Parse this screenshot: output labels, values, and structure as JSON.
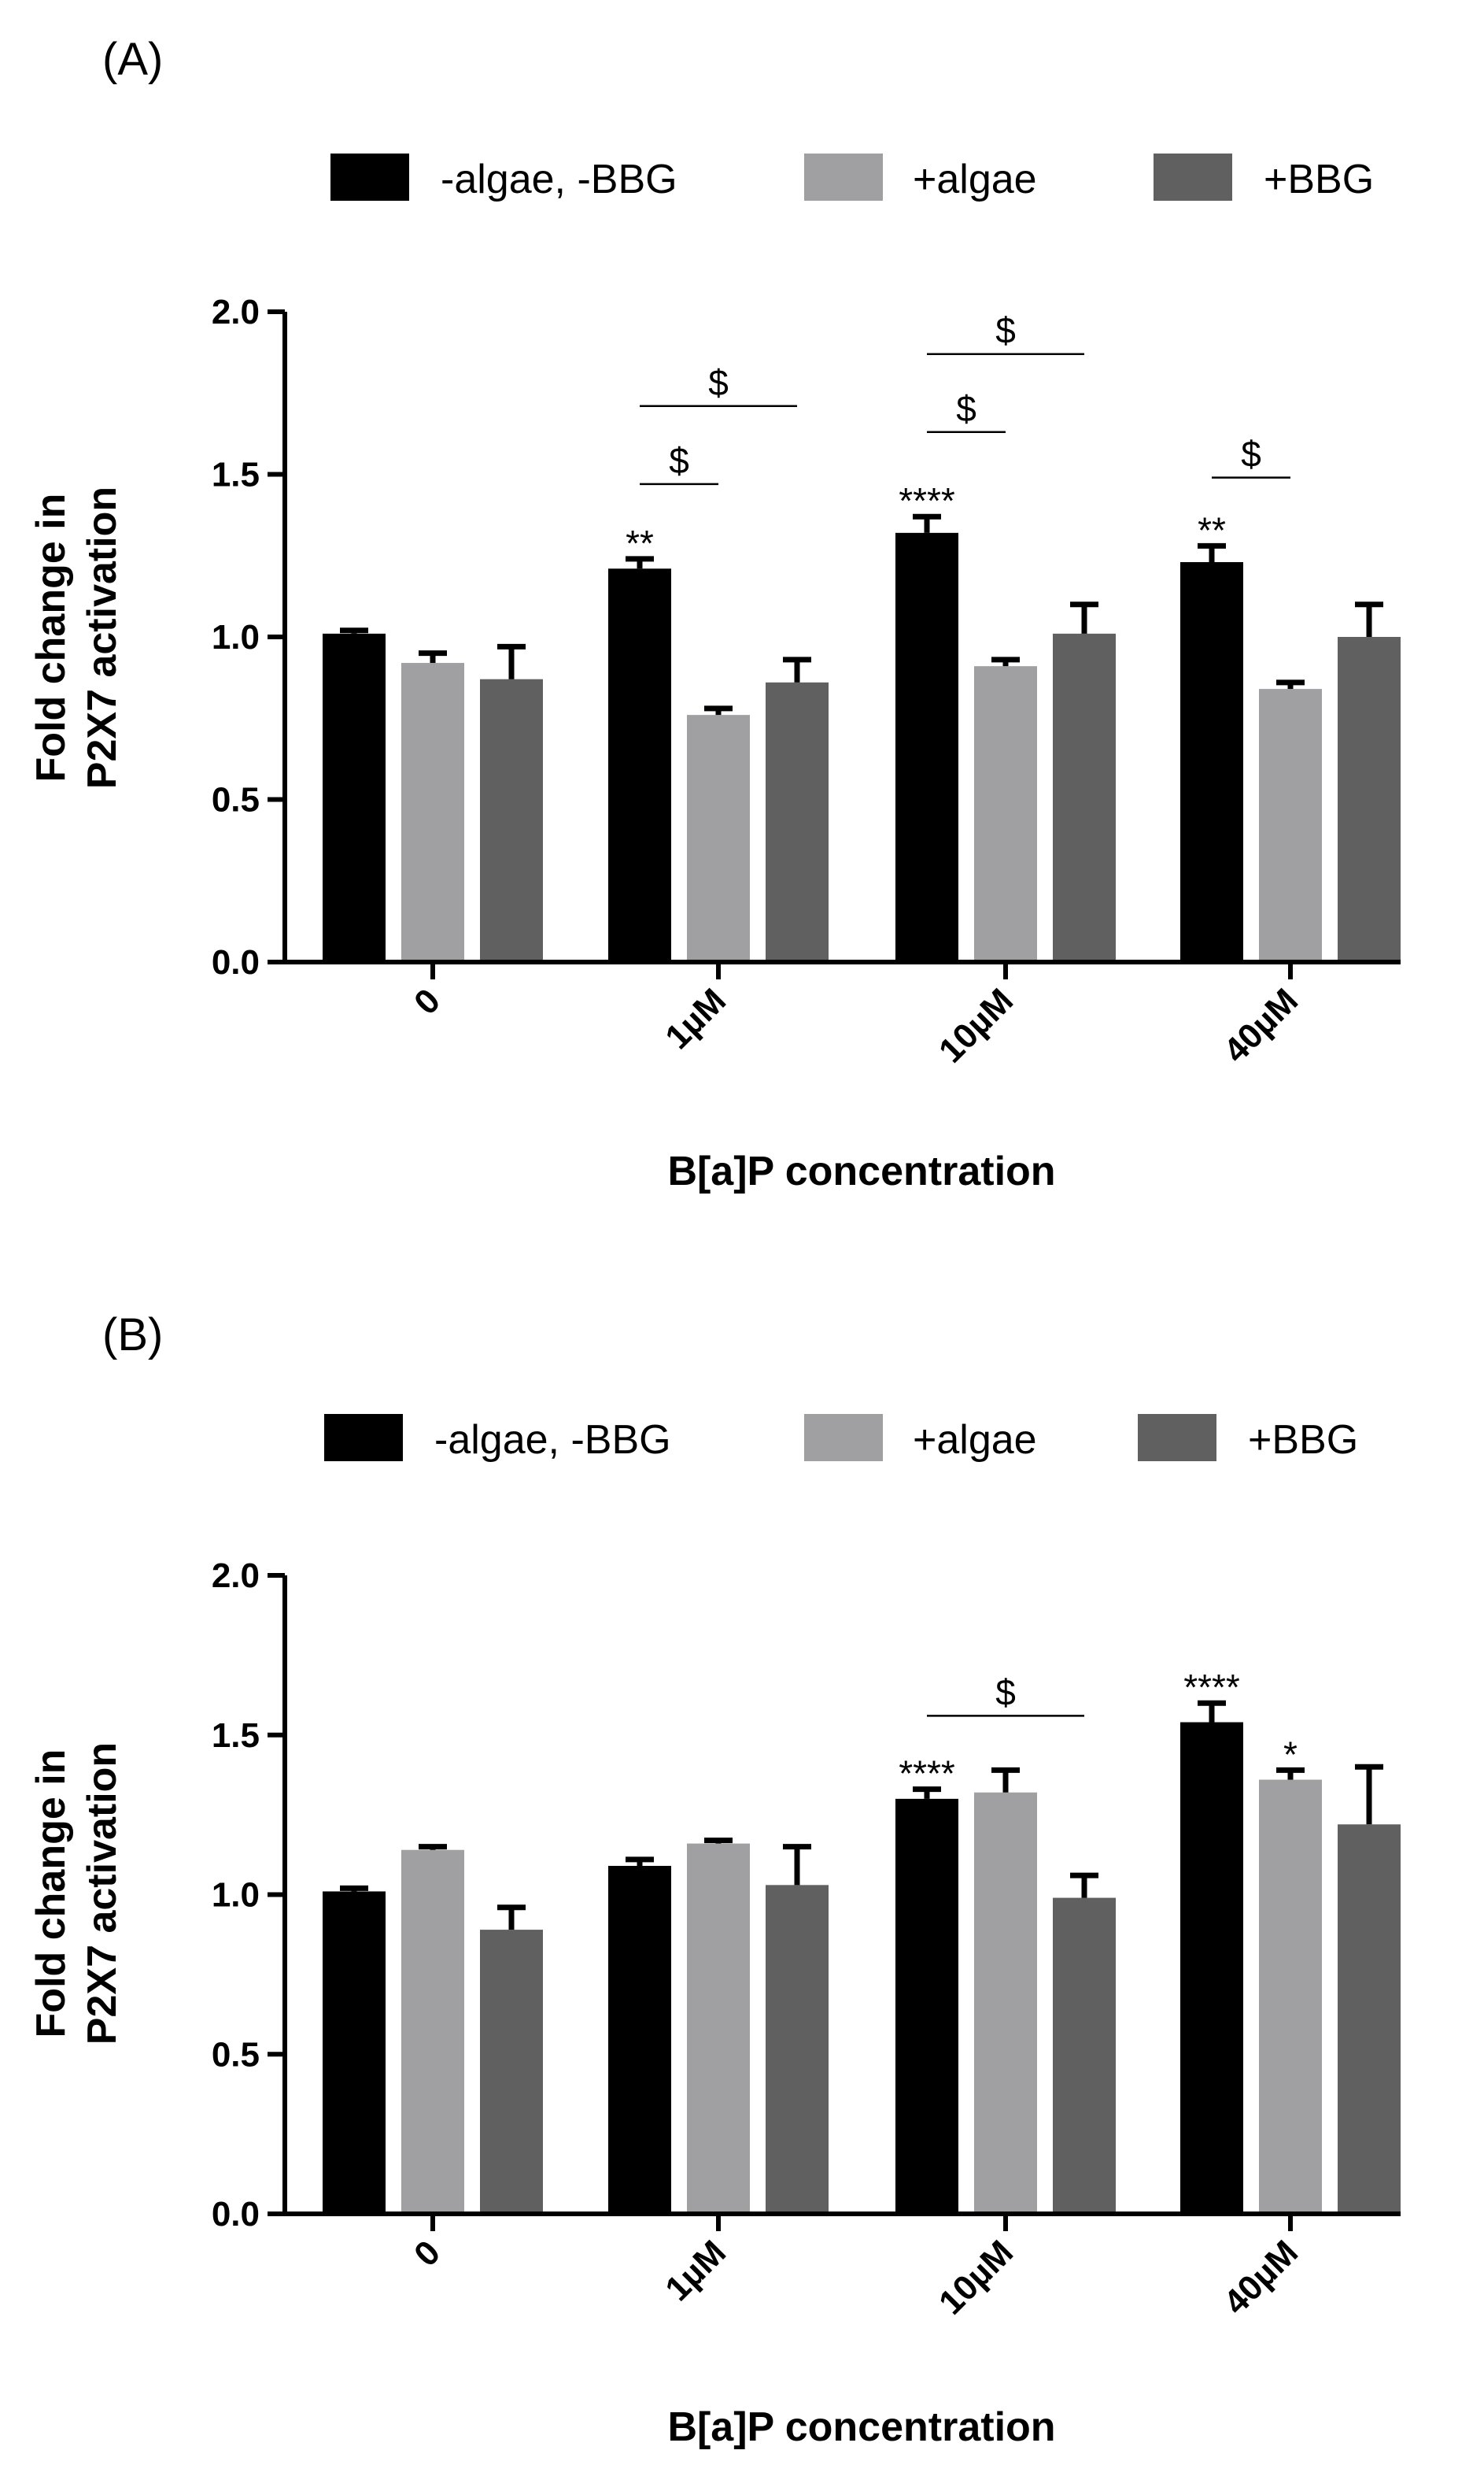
{
  "chart_data": [
    {
      "type": "bar",
      "panel_label": "(A)",
      "categories": [
        "0",
        "1µM",
        "10µM",
        "40µM"
      ],
      "series": [
        {
          "name": "-algae, -BBG",
          "color": "#000000",
          "values": [
            1.01,
            1.21,
            1.32,
            1.23
          ],
          "errors": [
            0.01,
            0.03,
            0.05,
            0.05
          ]
        },
        {
          "name": "+algae",
          "color": "#a0a0a2",
          "values": [
            0.92,
            0.76,
            0.91,
            0.84
          ],
          "errors": [
            0.03,
            0.02,
            0.02,
            0.02
          ]
        },
        {
          "name": "+BBG",
          "color": "#606060",
          "values": [
            0.87,
            0.86,
            1.01,
            1.0
          ],
          "errors": [
            0.1,
            0.07,
            0.09,
            0.1
          ]
        }
      ],
      "xlabel": "B[a]P concentration",
      "ylabel_line1": "Fold change in",
      "ylabel_line2": "P2X7 activation",
      "ylim": [
        0,
        2.0
      ],
      "yticks": [
        "0.0",
        "0.5",
        "1.0",
        "1.5",
        "2.0"
      ],
      "annotations": [
        {
          "text": "**",
          "category": 1,
          "series": 0
        },
        {
          "text": "****",
          "category": 2,
          "series": 0
        },
        {
          "text": "**",
          "category": 3,
          "series": 0
        }
      ],
      "brackets": [
        {
          "text": "$",
          "category": 1,
          "from_series": 0,
          "to_series": 1,
          "level": 1.47
        },
        {
          "text": "$",
          "category": 1,
          "from_series": 0,
          "to_series": 2,
          "level": 1.71
        },
        {
          "text": "$",
          "category": 2,
          "from_series": 0,
          "to_series": 1,
          "level": 1.63
        },
        {
          "text": "$",
          "category": 2,
          "from_series": 0,
          "to_series": 2,
          "level": 1.87
        },
        {
          "text": "$",
          "category": 3,
          "from_series": 0,
          "to_series": 1,
          "level": 1.49
        }
      ],
      "legend_position": "top"
    },
    {
      "type": "bar",
      "panel_label": "(B)",
      "categories": [
        "0",
        "1µM",
        "10µM",
        "40µM"
      ],
      "series": [
        {
          "name": "-algae, -BBG",
          "color": "#000000",
          "values": [
            1.01,
            1.09,
            1.3,
            1.54
          ],
          "errors": [
            0.01,
            0.02,
            0.03,
            0.06
          ]
        },
        {
          "name": "+algae",
          "color": "#a0a0a2",
          "values": [
            1.14,
            1.16,
            1.32,
            1.36
          ],
          "errors": [
            0.01,
            0.01,
            0.07,
            0.03
          ]
        },
        {
          "name": "+BBG",
          "color": "#606060",
          "values": [
            0.89,
            1.03,
            0.99,
            1.22
          ],
          "errors": [
            0.07,
            0.12,
            0.07,
            0.18
          ]
        }
      ],
      "xlabel": "B[a]P concentration",
      "ylabel_line1": "Fold change in",
      "ylabel_line2": "P2X7 activation",
      "ylim": [
        0,
        2.0
      ],
      "yticks": [
        "0.0",
        "0.5",
        "1.0",
        "1.5",
        "2.0"
      ],
      "annotations": [
        {
          "text": "****",
          "category": 2,
          "series": 0
        },
        {
          "text": "****",
          "category": 3,
          "series": 0
        },
        {
          "text": "*",
          "category": 3,
          "series": 1
        }
      ],
      "brackets": [
        {
          "text": "$",
          "category": 2,
          "from_series": 0,
          "to_series": 2,
          "level": 1.56
        }
      ],
      "legend_position": "top"
    }
  ]
}
